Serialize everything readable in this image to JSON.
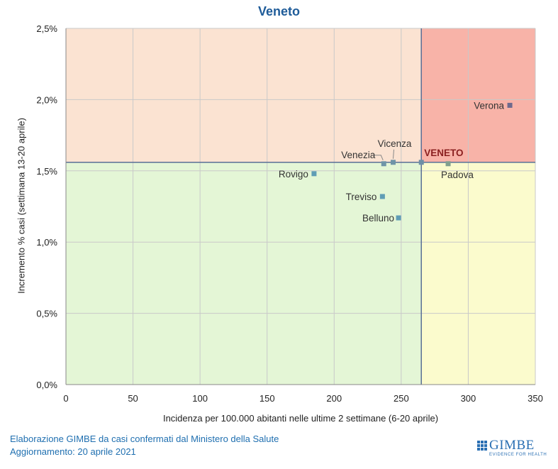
{
  "chart_data": {
    "type": "scatter",
    "title": "Veneto",
    "xlabel": "Incidenza per 100.000 abitanti nelle ultime 2 settimane (6-20 aprile)",
    "ylabel": "Incremento % casi (settimana 13-20 aprile)",
    "xlim": [
      0,
      350
    ],
    "ylim": [
      0,
      2.5
    ],
    "x_ticks": [
      0,
      50,
      100,
      150,
      200,
      250,
      300,
      350
    ],
    "y_ticks": [
      0,
      0.5,
      1.0,
      1.5,
      2.0,
      2.5
    ],
    "x_tick_labels": [
      "0",
      "50",
      "100",
      "150",
      "200",
      "250",
      "300",
      "350"
    ],
    "y_tick_labels": [
      "0,0%",
      "0,5%",
      "1,0%",
      "1,5%",
      "2,0%",
      "2,5%"
    ],
    "grid": true,
    "reference": {
      "x": 265,
      "y": 1.56
    },
    "quadrant_colors": {
      "top_left": "#fbe3d2",
      "top_right": "#f8b3a8",
      "bottom_left": "#e4f6d6",
      "bottom_right": "#fbfbcd"
    },
    "points": [
      {
        "name": "Verona",
        "x": 331,
        "y": 1.96,
        "color": "#6e6a8d"
      },
      {
        "name": "VENETO",
        "x": 265,
        "y": 1.56,
        "color": "#6f8fa6",
        "bold": true
      },
      {
        "name": "Vicenza",
        "x": 244,
        "y": 1.56,
        "color": "#6f95a8"
      },
      {
        "name": "Venezia",
        "x": 237,
        "y": 1.55,
        "color": "#6f95a8"
      },
      {
        "name": "Padova",
        "x": 285,
        "y": 1.55,
        "color": "#82a08e"
      },
      {
        "name": "Rovigo",
        "x": 185,
        "y": 1.48,
        "color": "#5f9db5"
      },
      {
        "name": "Treviso",
        "x": 236,
        "y": 1.32,
        "color": "#5f9db5"
      },
      {
        "name": "Belluno",
        "x": 248,
        "y": 1.17,
        "color": "#5f9db5"
      }
    ]
  },
  "footer": {
    "line1": "Elaborazione GIMBE da casi confermati dal Ministero della Salute",
    "line2": "Aggiornamento: 20 aprile 2021"
  },
  "logo": {
    "text": "GIMBE",
    "subtitle": "EVIDENCE FOR HEALTH"
  }
}
